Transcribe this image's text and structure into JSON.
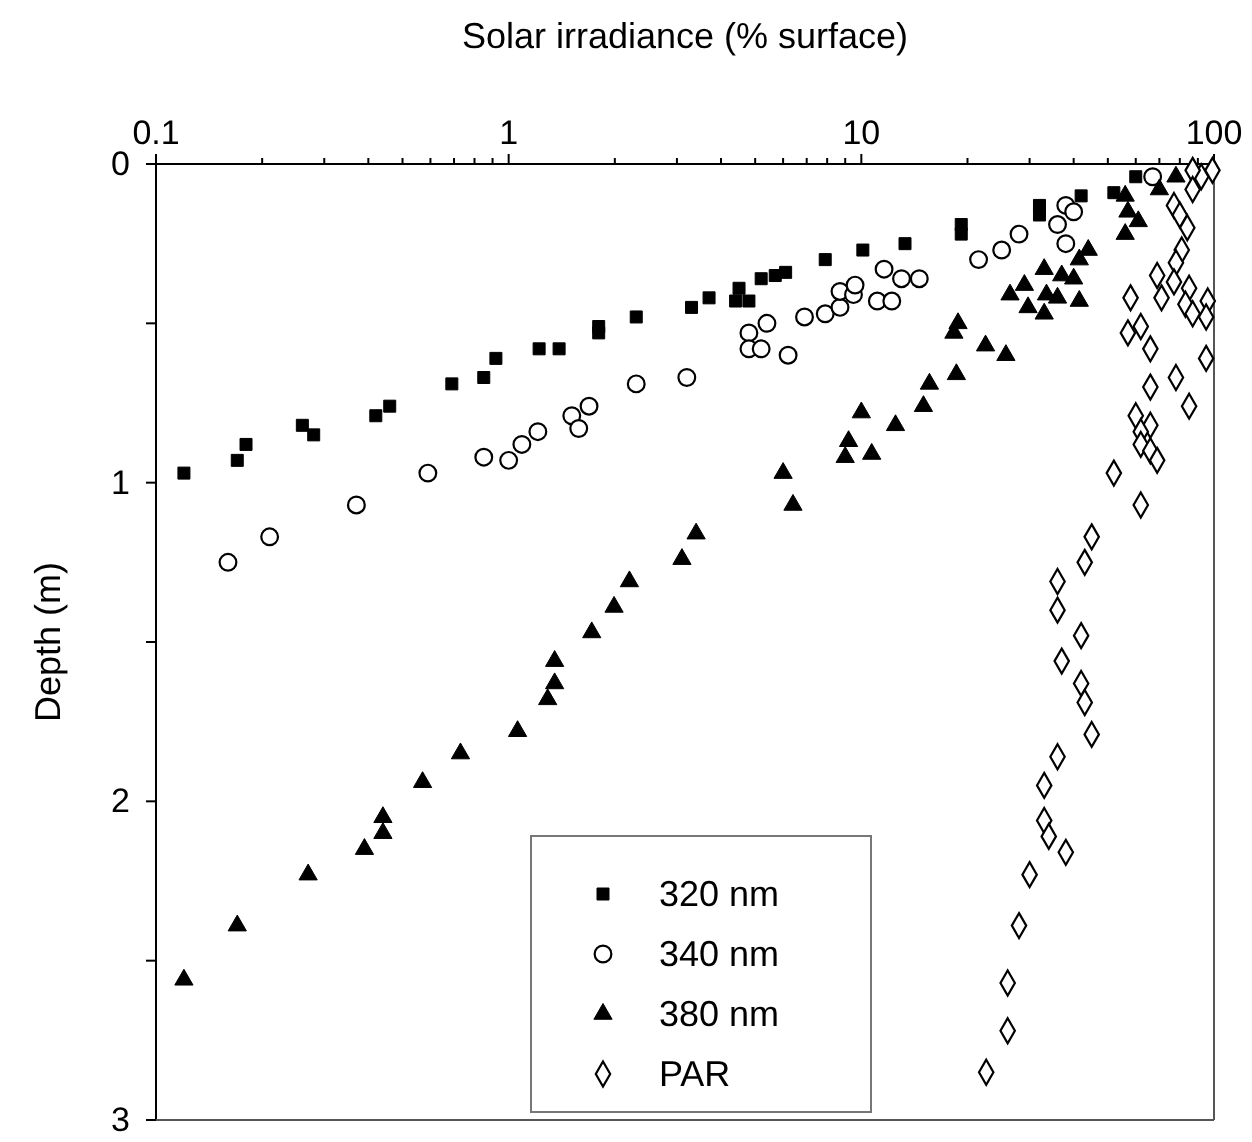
{
  "chart_data": {
    "type": "scatter",
    "xlabel": "Solar irradiance (% surface)",
    "ylabel": "Depth (m)",
    "log": "x",
    "xlim": [
      0.1,
      100
    ],
    "ylim": [
      3,
      0
    ],
    "xticks": [
      0.1,
      {
        "value": 0.2,
        "label": null
      },
      {
        "value": 0.3,
        "label": null
      },
      {
        "value": 0.4,
        "label": null
      },
      {
        "value": 0.5,
        "label": null
      },
      {
        "value": 0.6,
        "label": null
      },
      {
        "value": 0.7,
        "label": null
      },
      {
        "value": 0.8,
        "label": null
      },
      {
        "value": 0.9,
        "label": null
      },
      1,
      {
        "value": 2,
        "label": null
      },
      {
        "value": 3,
        "label": null
      },
      {
        "value": 4,
        "label": null
      },
      {
        "value": 5,
        "label": null
      },
      {
        "value": 6,
        "label": null
      },
      {
        "value": 7,
        "label": null
      },
      {
        "value": 8,
        "label": null
      },
      {
        "value": 9,
        "label": null
      },
      10,
      {
        "value": 20,
        "label": null
      },
      {
        "value": 30,
        "label": null
      },
      {
        "value": 40,
        "label": null
      },
      {
        "value": 50,
        "label": null
      },
      {
        "value": 60,
        "label": null
      },
      {
        "value": 70,
        "label": null
      },
      {
        "value": 80,
        "label": null
      },
      {
        "value": 90,
        "label": null
      },
      100
    ],
    "yticks": [
      0,
      {
        "value": 0.5,
        "label": null
      },
      1,
      {
        "value": 1.5,
        "label": null
      },
      2,
      {
        "value": 2.5,
        "label": null
      },
      3
    ],
    "legend": "bottom",
    "grid": false,
    "series": [
      {
        "name": "320 nm",
        "color": "#000000",
        "marker": "square",
        "x": [
          0.12,
          0.17,
          0.18,
          0.26,
          0.28,
          0.42,
          0.46,
          0.69,
          0.85,
          0.92,
          1.22,
          1.39,
          1.8,
          1.8,
          2.3,
          3.3,
          3.7,
          4.5,
          4.4,
          4.8,
          5.2,
          5.7,
          6.1,
          7.9,
          10.1,
          13.3,
          19.2,
          19.2,
          32,
          32,
          42,
          52,
          60
        ],
        "values": [
          0.97,
          0.93,
          0.88,
          0.82,
          0.85,
          0.79,
          0.76,
          0.69,
          0.67,
          0.61,
          0.58,
          0.58,
          0.53,
          0.51,
          0.48,
          0.45,
          0.42,
          0.39,
          0.43,
          0.43,
          0.36,
          0.35,
          0.34,
          0.3,
          0.27,
          0.25,
          0.19,
          0.22,
          0.13,
          0.16,
          0.1,
          0.09,
          0.04
        ]
      },
      {
        "name": "340 nm",
        "color": "#000000",
        "marker": "circle",
        "x": [
          0.16,
          0.21,
          0.37,
          0.59,
          0.85,
          1.0,
          1.09,
          1.21,
          1.51,
          1.69,
          1.58,
          2.3,
          3.2,
          4.8,
          4.8,
          5.2,
          5.4,
          6.2,
          6.9,
          7.9,
          8.7,
          8.7,
          9.5,
          9.6,
          11.1,
          12.2,
          11.6,
          13.0,
          14.6,
          21.5,
          25,
          28,
          36,
          38,
          40,
          38,
          67
        ],
        "values": [
          1.25,
          1.17,
          1.07,
          0.97,
          0.92,
          0.93,
          0.88,
          0.84,
          0.79,
          0.76,
          0.83,
          0.69,
          0.67,
          0.53,
          0.58,
          0.58,
          0.5,
          0.6,
          0.48,
          0.47,
          0.45,
          0.4,
          0.41,
          0.38,
          0.43,
          0.43,
          0.33,
          0.36,
          0.36,
          0.3,
          0.27,
          0.22,
          0.19,
          0.13,
          0.15,
          0.25,
          0.04
        ]
      },
      {
        "name": "380 nm",
        "color": "#000000",
        "marker": "triangle",
        "x": [
          0.12,
          0.17,
          0.27,
          0.39,
          0.44,
          0.44,
          0.57,
          0.73,
          1.06,
          1.29,
          1.35,
          1.35,
          1.72,
          1.99,
          2.2,
          3.1,
          3.4,
          6.0,
          6.4,
          9.0,
          9.2,
          10,
          10.7,
          12.5,
          15.0,
          15.6,
          18.6,
          18.3,
          18.8,
          22.5,
          25.7,
          26.4,
          29,
          29.7,
          33,
          33,
          33.5,
          36,
          37,
          40,
          41.5,
          41.5,
          44,
          56,
          57,
          61,
          56,
          70,
          78
        ],
        "values": [
          2.56,
          2.39,
          2.23,
          2.15,
          2.1,
          2.05,
          1.94,
          1.85,
          1.78,
          1.68,
          1.63,
          1.56,
          1.47,
          1.39,
          1.31,
          1.24,
          1.16,
          0.97,
          1.07,
          0.92,
          0.87,
          0.78,
          0.91,
          0.82,
          0.76,
          0.69,
          0.66,
          0.53,
          0.5,
          0.57,
          0.6,
          0.41,
          0.38,
          0.45,
          0.33,
          0.47,
          0.41,
          0.42,
          0.35,
          0.36,
          0.43,
          0.3,
          0.27,
          0.22,
          0.15,
          0.18,
          0.1,
          0.08,
          0.04
        ]
      },
      {
        "name": "PAR",
        "color": "#000000",
        "marker": "diamond",
        "x": [
          99,
          92,
          87,
          87,
          77,
          80,
          84,
          81,
          78,
          69,
          77,
          85,
          71,
          83,
          96,
          87,
          95,
          58,
          62,
          57,
          66,
          95,
          78,
          66,
          85,
          60,
          66,
          62,
          62,
          66,
          69,
          52,
          62,
          45,
          43,
          36,
          36,
          42,
          37,
          42,
          43,
          45,
          36,
          33,
          33,
          34,
          38,
          30,
          28,
          26,
          26,
          22.6
        ],
        "values": [
          0.02,
          0.04,
          0.02,
          0.08,
          0.13,
          0.16,
          0.2,
          0.27,
          0.31,
          0.35,
          0.37,
          0.39,
          0.42,
          0.44,
          0.43,
          0.47,
          0.48,
          0.42,
          0.51,
          0.53,
          0.58,
          0.61,
          0.67,
          0.7,
          0.76,
          0.79,
          0.82,
          0.84,
          0.88,
          0.9,
          0.93,
          0.97,
          1.07,
          1.17,
          1.25,
          1.31,
          1.4,
          1.48,
          1.56,
          1.63,
          1.69,
          1.79,
          1.86,
          1.95,
          2.06,
          2.11,
          2.16,
          2.23,
          2.39,
          2.57,
          2.72,
          2.85
        ]
      }
    ]
  }
}
